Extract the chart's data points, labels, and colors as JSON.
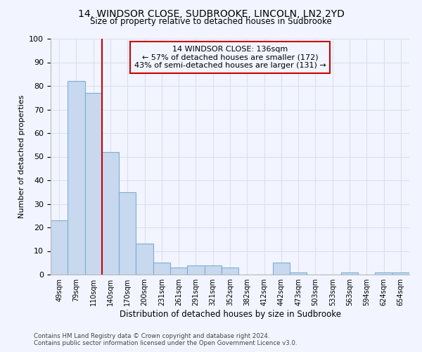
{
  "title_line1": "14, WINDSOR CLOSE, SUDBROOKE, LINCOLN, LN2 2YD",
  "title_line2": "Size of property relative to detached houses in Sudbrooke",
  "xlabel": "Distribution of detached houses by size in Sudbrooke",
  "ylabel": "Number of detached properties",
  "categories": [
    "49sqm",
    "79sqm",
    "110sqm",
    "140sqm",
    "170sqm",
    "200sqm",
    "231sqm",
    "261sqm",
    "291sqm",
    "321sqm",
    "352sqm",
    "382sqm",
    "412sqm",
    "442sqm",
    "473sqm",
    "503sqm",
    "533sqm",
    "563sqm",
    "594sqm",
    "624sqm",
    "654sqm"
  ],
  "values": [
    23,
    82,
    77,
    52,
    35,
    13,
    5,
    3,
    4,
    4,
    3,
    0,
    0,
    5,
    1,
    0,
    0,
    1,
    0,
    1,
    1
  ],
  "bar_color": "#c8d8ee",
  "bar_edge_color": "#7aafd4",
  "vline_index": 3,
  "vline_color": "#cc0000",
  "annotation_line1": "14 WINDSOR CLOSE: 136sqm",
  "annotation_line2": "← 57% of detached houses are smaller (172)",
  "annotation_line3": "43% of semi-detached houses are larger (131) →",
  "annotation_box_color": "#cc0000",
  "ylim": [
    0,
    100
  ],
  "yticks": [
    0,
    10,
    20,
    30,
    40,
    50,
    60,
    70,
    80,
    90,
    100
  ],
  "background_color": "#f2f5ff",
  "grid_color": "#d8e0f0",
  "footer_line1": "Contains HM Land Registry data © Crown copyright and database right 2024.",
  "footer_line2": "Contains public sector information licensed under the Open Government Licence v3.0."
}
